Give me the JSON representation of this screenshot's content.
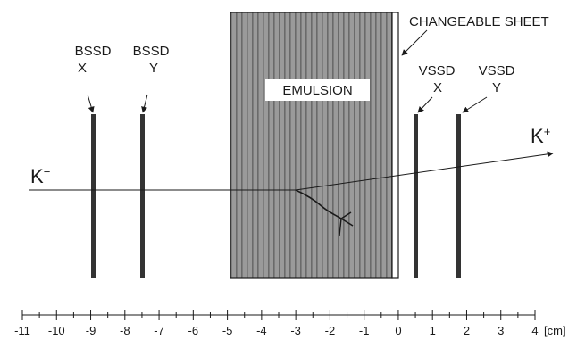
{
  "labels": {
    "bssd_x": [
      "BSSD",
      "X"
    ],
    "bssd_y": [
      "BSSD",
      "Y"
    ],
    "vssd_x": [
      "VSSD",
      "X"
    ],
    "vssd_y": [
      "VSSD",
      "Y"
    ],
    "emulsion": "EMULSION",
    "changeable_sheet": "CHANGEABLE SHEET",
    "k_minus": {
      "base": "K",
      "sup": "−"
    },
    "k_plus": {
      "base": "K",
      "sup": "+"
    }
  },
  "axis": {
    "unit": "[cm]",
    "ticks": [
      -11,
      -10,
      -9,
      -8,
      -7,
      -6,
      -5,
      -4,
      -3,
      -2,
      -1,
      0,
      1,
      2,
      3,
      4
    ]
  },
  "colors": {
    "ink": "#1a1a1a",
    "detector": "#333333",
    "emulsion_fill": "#9a9a9a",
    "emulsion_stripe": "#6a6a6a",
    "sheet_fill": "#ffffff"
  }
}
